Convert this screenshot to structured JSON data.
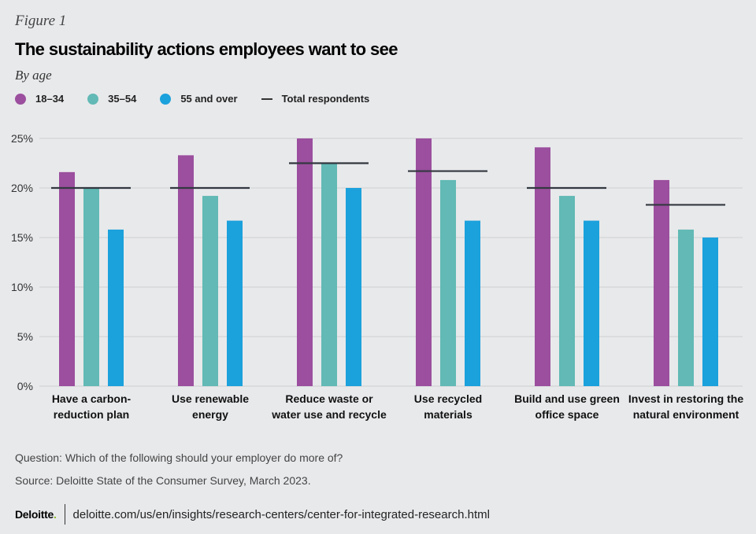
{
  "figure_label": "Figure 1",
  "title": "The sustainability actions employees want to see",
  "subtitle": "By age",
  "legend": [
    {
      "label": "18–34",
      "color": "#9b4f9e",
      "kind": "dot"
    },
    {
      "label": "35–54",
      "color": "#62b9b5",
      "kind": "dot"
    },
    {
      "label": "55 and over",
      "color": "#1ba1dc",
      "kind": "dot"
    },
    {
      "label": "Total respondents",
      "color": "#333840",
      "kind": "line"
    }
  ],
  "chart_data": {
    "type": "bar",
    "title": "The sustainability actions employees want to see",
    "subtitle": "By age",
    "xlabel": "",
    "ylabel": "",
    "ylim": [
      0,
      25
    ],
    "yticks": [
      0,
      5,
      10,
      15,
      20,
      25
    ],
    "ytick_labels": [
      "0%",
      "5%",
      "10%",
      "15%",
      "20%",
      "25%"
    ],
    "grid": true,
    "legend_position": "top-left",
    "categories": [
      [
        "Have a carbon-",
        "reduction plan"
      ],
      [
        "Use renewable",
        "energy"
      ],
      [
        "Reduce waste or",
        "water use and recycle"
      ],
      [
        "Use recycled",
        "materials"
      ],
      [
        "Build and use green",
        "office space"
      ],
      [
        "Invest in restoring the",
        "natural environment"
      ]
    ],
    "series": [
      {
        "name": "18–34",
        "color": "#9b4f9e",
        "values": [
          21.6,
          23.3,
          25.0,
          25.0,
          24.1,
          20.8
        ]
      },
      {
        "name": "35–54",
        "color": "#62b9b5",
        "values": [
          20.0,
          19.2,
          22.5,
          20.8,
          19.2,
          15.8
        ]
      },
      {
        "name": "55 and over",
        "color": "#1ba1dc",
        "values": [
          15.8,
          16.7,
          20.0,
          16.7,
          16.7,
          15.0
        ]
      }
    ],
    "total": {
      "name": "Total respondents",
      "color": "#333840",
      "values": [
        20.0,
        20.0,
        22.5,
        21.7,
        20.0,
        18.3
      ]
    }
  },
  "notes": {
    "question": "Question: Which of the following should your employer do more of?",
    "source": "Source: Deloitte State of the Consumer Survey, March 2023."
  },
  "footer": {
    "logo_text": "Deloitte",
    "logo_dot": ".",
    "url": "deloitte.com/us/en/insights/research-centers/center-for-integrated-research.html"
  }
}
